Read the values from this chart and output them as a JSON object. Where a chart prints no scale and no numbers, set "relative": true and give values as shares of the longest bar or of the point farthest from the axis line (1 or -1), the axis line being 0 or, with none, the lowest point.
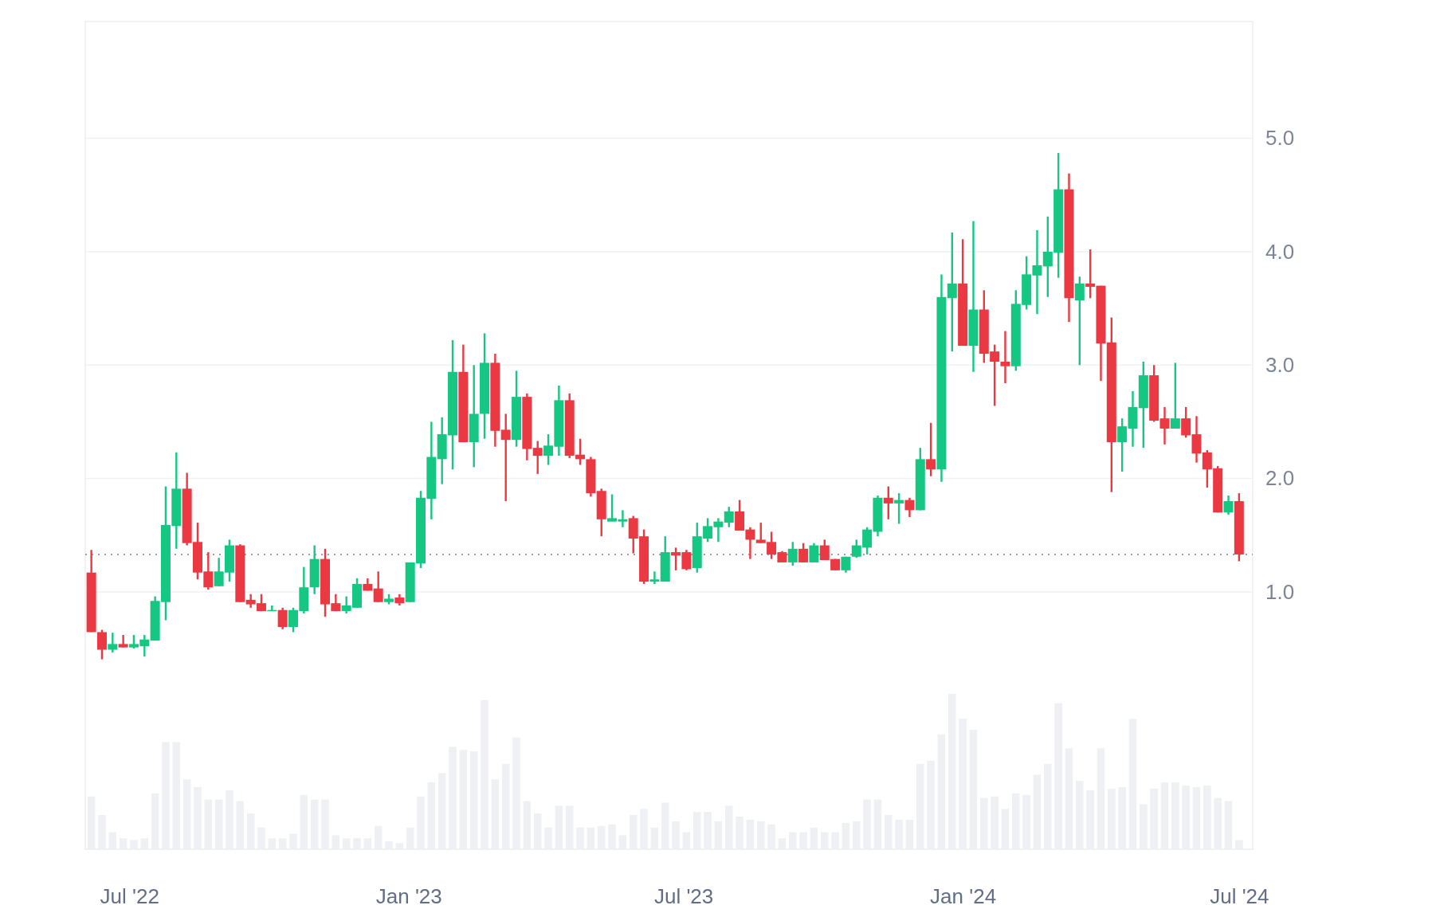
{
  "chart_data": [
    {
      "type": "candlestick",
      "x": [
        "2022-06-06",
        "2022-06-13",
        "2022-06-20",
        "2022-06-27",
        "2022-07-04",
        "2022-07-11",
        "2022-07-18",
        "2022-07-25",
        "2022-08-01",
        "2022-08-08",
        "2022-08-15",
        "2022-08-22",
        "2022-08-29",
        "2022-09-05",
        "2022-09-12",
        "2022-09-19",
        "2022-09-26",
        "2022-10-03",
        "2022-10-10",
        "2022-10-17",
        "2022-10-24",
        "2022-10-31",
        "2022-11-07",
        "2022-11-14",
        "2022-11-21",
        "2022-11-28",
        "2022-12-05",
        "2022-12-12",
        "2022-12-19",
        "2022-12-26",
        "2023-01-02",
        "2023-01-09",
        "2023-01-16",
        "2023-01-23",
        "2023-01-30",
        "2023-02-06",
        "2023-02-13",
        "2023-02-20",
        "2023-02-27",
        "2023-03-06",
        "2023-03-13",
        "2023-03-20",
        "2023-03-27",
        "2023-04-03",
        "2023-04-10",
        "2023-04-17",
        "2023-04-24",
        "2023-05-01",
        "2023-05-08",
        "2023-05-15",
        "2023-05-22",
        "2023-05-29",
        "2023-06-05",
        "2023-06-12",
        "2023-06-19",
        "2023-06-26",
        "2023-07-03",
        "2023-07-10",
        "2023-07-17",
        "2023-07-24",
        "2023-07-31",
        "2023-08-07",
        "2023-08-14",
        "2023-08-21",
        "2023-08-28",
        "2023-09-04",
        "2023-09-11",
        "2023-09-18",
        "2023-09-25",
        "2023-10-02",
        "2023-10-09",
        "2023-10-16",
        "2023-10-23",
        "2023-10-30",
        "2023-11-06",
        "2023-11-13",
        "2023-11-20",
        "2023-11-27",
        "2023-12-04",
        "2023-12-11",
        "2023-12-18",
        "2023-12-25",
        "2024-01-01",
        "2024-01-08",
        "2024-01-15",
        "2024-01-22",
        "2024-01-29",
        "2024-02-05",
        "2024-02-12",
        "2024-02-19",
        "2024-02-26",
        "2024-03-04",
        "2024-03-11",
        "2024-03-18",
        "2024-03-25",
        "2024-04-01",
        "2024-04-08",
        "2024-04-15",
        "2024-04-22",
        "2024-04-29",
        "2024-05-06",
        "2024-05-13",
        "2024-05-20",
        "2024-05-27",
        "2024-06-03",
        "2024-06-10",
        "2024-06-17",
        "2024-06-24",
        "2024-07-01"
      ],
      "ohlc": [
        [
          1.17,
          1.37,
          0.645,
          0.645
        ],
        [
          0.645,
          0.665,
          0.405,
          0.49
        ],
        [
          0.49,
          0.64,
          0.465,
          0.54
        ],
        [
          0.54,
          0.62,
          0.51,
          0.51
        ],
        [
          0.51,
          0.62,
          0.5,
          0.54
        ],
        [
          0.52,
          0.62,
          0.43,
          0.58
        ],
        [
          0.57,
          0.96,
          0.57,
          0.92
        ],
        [
          0.91,
          1.93,
          0.75,
          1.59
        ],
        [
          1.58,
          2.23,
          1.38,
          1.91
        ],
        [
          1.91,
          2.05,
          1.41,
          1.43
        ],
        [
          1.44,
          1.61,
          1.11,
          1.17
        ],
        [
          1.18,
          1.35,
          1.02,
          1.04
        ],
        [
          1.05,
          1.3,
          1.05,
          1.18
        ],
        [
          1.17,
          1.46,
          1.09,
          1.41
        ],
        [
          1.41,
          1.42,
          0.91,
          0.91
        ],
        [
          0.93,
          0.98,
          0.86,
          0.89
        ],
        [
          0.9,
          0.98,
          0.83,
          0.83
        ],
        [
          0.83,
          0.88,
          0.83,
          0.84
        ],
        [
          0.84,
          0.86,
          0.67,
          0.69
        ],
        [
          0.69,
          0.86,
          0.645,
          0.84
        ],
        [
          0.83,
          1.22,
          0.81,
          1.04
        ],
        [
          1.04,
          1.41,
          0.98,
          1.29
        ],
        [
          1.29,
          1.38,
          0.78,
          0.89
        ],
        [
          0.9,
          0.98,
          0.83,
          0.83
        ],
        [
          0.83,
          0.96,
          0.81,
          0.88
        ],
        [
          0.86,
          1.12,
          0.86,
          1.07
        ],
        [
          1.07,
          1.12,
          1.01,
          1.01
        ],
        [
          1.03,
          1.18,
          0.91,
          0.91
        ],
        [
          0.91,
          0.98,
          0.89,
          0.94
        ],
        [
          0.95,
          0.98,
          0.88,
          0.9
        ],
        [
          0.91,
          1.26,
          0.91,
          1.26
        ],
        [
          1.25,
          1.89,
          1.21,
          1.83
        ],
        [
          1.82,
          2.5,
          1.64,
          2.19
        ],
        [
          2.17,
          2.54,
          1.95,
          2.39
        ],
        [
          2.38,
          3.22,
          2.08,
          2.94
        ],
        [
          2.94,
          3.18,
          2.32,
          2.32
        ],
        [
          2.32,
          3.0,
          2.1,
          2.57
        ],
        [
          2.57,
          3.28,
          2.35,
          3.02
        ],
        [
          3.02,
          3.1,
          2.28,
          2.42
        ],
        [
          2.43,
          2.57,
          1.8,
          2.34
        ],
        [
          2.34,
          2.95,
          2.28,
          2.72
        ],
        [
          2.72,
          2.75,
          2.16,
          2.26
        ],
        [
          2.27,
          2.33,
          2.04,
          2.2
        ],
        [
          2.2,
          2.39,
          2.12,
          2.29
        ],
        [
          2.28,
          2.82,
          2.2,
          2.69
        ],
        [
          2.69,
          2.75,
          2.18,
          2.2
        ],
        [
          2.21,
          2.35,
          2.12,
          2.17
        ],
        [
          2.17,
          2.19,
          1.84,
          1.87
        ],
        [
          1.89,
          1.91,
          1.49,
          1.64
        ],
        [
          1.62,
          1.86,
          1.62,
          1.65
        ],
        [
          1.62,
          1.72,
          1.57,
          1.64
        ],
        [
          1.65,
          1.67,
          1.34,
          1.47
        ],
        [
          1.49,
          1.55,
          1.07,
          1.09
        ],
        [
          1.09,
          1.18,
          1.07,
          1.11
        ],
        [
          1.09,
          1.49,
          1.09,
          1.35
        ],
        [
          1.35,
          1.39,
          1.19,
          1.32
        ],
        [
          1.35,
          1.37,
          1.19,
          1.2
        ],
        [
          1.21,
          1.61,
          1.17,
          1.49
        ],
        [
          1.47,
          1.65,
          1.44,
          1.58
        ],
        [
          1.57,
          1.65,
          1.44,
          1.62
        ],
        [
          1.61,
          1.75,
          1.57,
          1.71
        ],
        [
          1.71,
          1.81,
          1.54,
          1.54
        ],
        [
          1.55,
          1.57,
          1.29,
          1.46
        ],
        [
          1.46,
          1.61,
          1.43,
          1.43
        ],
        [
          1.44,
          1.53,
          1.29,
          1.33
        ],
        [
          1.35,
          1.36,
          1.26,
          1.26
        ],
        [
          1.26,
          1.44,
          1.23,
          1.38
        ],
        [
          1.38,
          1.43,
          1.26,
          1.26
        ],
        [
          1.26,
          1.43,
          1.26,
          1.41
        ],
        [
          1.41,
          1.46,
          1.28,
          1.28
        ],
        [
          1.29,
          1.29,
          1.19,
          1.19
        ],
        [
          1.19,
          1.31,
          1.17,
          1.31
        ],
        [
          1.31,
          1.46,
          1.3,
          1.41
        ],
        [
          1.39,
          1.57,
          1.33,
          1.55
        ],
        [
          1.53,
          1.85,
          1.49,
          1.83
        ],
        [
          1.83,
          1.93,
          1.64,
          1.78
        ],
        [
          1.78,
          1.87,
          1.6,
          1.81
        ],
        [
          1.81,
          1.83,
          1.66,
          1.72
        ],
        [
          1.72,
          2.27,
          1.72,
          2.17
        ],
        [
          2.17,
          2.49,
          2.02,
          2.08
        ],
        [
          2.08,
          3.8,
          1.97,
          3.6
        ],
        [
          3.59,
          4.17,
          3.12,
          3.72
        ],
        [
          3.72,
          4.11,
          3.17,
          3.17
        ],
        [
          3.17,
          4.27,
          2.94,
          3.49
        ],
        [
          3.49,
          3.66,
          3.02,
          3.1
        ],
        [
          3.12,
          3.18,
          2.64,
          3.03
        ],
        [
          3.03,
          3.3,
          2.84,
          2.99
        ],
        [
          2.99,
          3.66,
          2.95,
          3.54
        ],
        [
          3.53,
          3.96,
          3.49,
          3.8
        ],
        [
          3.79,
          4.19,
          3.45,
          3.88
        ],
        [
          3.87,
          4.31,
          3.6,
          4.0
        ],
        [
          3.99,
          4.87,
          3.77,
          4.55
        ],
        [
          4.55,
          4.69,
          3.38,
          3.59
        ],
        [
          3.57,
          3.78,
          3.0,
          3.72
        ],
        [
          3.72,
          4.02,
          3.59,
          3.69
        ],
        [
          3.7,
          3.7,
          2.86,
          3.19
        ],
        [
          3.2,
          3.42,
          1.88,
          2.32
        ],
        [
          2.32,
          2.53,
          2.06,
          2.46
        ],
        [
          2.44,
          2.77,
          2.28,
          2.63
        ],
        [
          2.62,
          3.03,
          2.27,
          2.91
        ],
        [
          2.91,
          3.0,
          2.5,
          2.51
        ],
        [
          2.53,
          2.63,
          2.3,
          2.44
        ],
        [
          2.44,
          3.02,
          2.44,
          2.53
        ],
        [
          2.53,
          2.63,
          2.36,
          2.38
        ],
        [
          2.39,
          2.55,
          2.14,
          2.22
        ],
        [
          2.23,
          2.25,
          1.92,
          2.08
        ],
        [
          2.09,
          2.11,
          1.7,
          1.7
        ],
        [
          1.7,
          1.85,
          1.68,
          1.8
        ],
        [
          1.8,
          1.87,
          1.27,
          1.33
        ]
      ],
      "colors": [
        "#ea3943",
        "#ea3943",
        "#16c784",
        "#ea3943",
        "#16c784",
        "#16c784",
        "#16c784",
        "#16c784",
        "#16c784",
        "#ea3943",
        "#ea3943",
        "#ea3943",
        "#16c784",
        "#16c784",
        "#ea3943",
        "#ea3943",
        "#ea3943",
        "#16c784",
        "#ea3943",
        "#16c784",
        "#16c784",
        "#16c784",
        "#ea3943",
        "#ea3943",
        "#16c784",
        "#16c784",
        "#ea3943",
        "#ea3943",
        "#16c784",
        "#ea3943",
        "#16c784",
        "#16c784",
        "#16c784",
        "#16c784",
        "#16c784",
        "#ea3943",
        "#16c784",
        "#16c784",
        "#ea3943",
        "#ea3943",
        "#16c784",
        "#ea3943",
        "#ea3943",
        "#16c784",
        "#16c784",
        "#ea3943",
        "#ea3943",
        "#ea3943",
        "#ea3943",
        "#16c784",
        "#16c784",
        "#ea3943",
        "#ea3943",
        "#16c784",
        "#16c784",
        "#ea3943",
        "#ea3943",
        "#16c784",
        "#16c784",
        "#16c784",
        "#16c784",
        "#ea3943",
        "#ea3943",
        "#ea3943",
        "#ea3943",
        "#ea3943",
        "#16c784",
        "#ea3943",
        "#16c784",
        "#ea3943",
        "#ea3943",
        "#16c784",
        "#16c784",
        "#16c784",
        "#16c784",
        "#ea3943",
        "#16c784",
        "#ea3943",
        "#16c784",
        "#ea3943",
        "#16c784",
        "#16c784",
        "#ea3943",
        "#16c784",
        "#ea3943",
        "#ea3943",
        "#ea3943",
        "#16c784",
        "#16c784",
        "#16c784",
        "#16c784",
        "#16c784",
        "#ea3943",
        "#16c784",
        "#ea3943",
        "#ea3943",
        "#ea3943",
        "#16c784",
        "#16c784",
        "#16c784",
        "#ea3943",
        "#ea3943",
        "#16c784",
        "#ea3943",
        "#ea3943",
        "#ea3943",
        "#ea3943",
        "#16c784",
        "#ea3943"
      ],
      "xlim": [
        "2022-06-02",
        "2024-07-10"
      ],
      "ylim": [
        -1.27,
        6.03
      ],
      "yticks": [
        {
          "value": 1,
          "label": "1.0"
        },
        {
          "value": 2,
          "label": "2.0"
        },
        {
          "value": 3,
          "label": "3.0"
        },
        {
          "value": 4,
          "label": "4.0"
        },
        {
          "value": 5,
          "label": "5.0"
        }
      ],
      "grid": "y",
      "tick_labels": "y",
      "ref_lines": [
        {
          "axis": "y",
          "value": 1.33,
          "color": "#9aa0a8",
          "line_style": "dotted"
        }
      ]
    },
    {
      "type": "bar",
      "relative": true,
      "x": [
        "2022-06-06",
        "2022-06-13",
        "2022-06-20",
        "2022-06-27",
        "2022-07-04",
        "2022-07-11",
        "2022-07-18",
        "2022-07-25",
        "2022-08-01",
        "2022-08-08",
        "2022-08-15",
        "2022-08-22",
        "2022-08-29",
        "2022-09-05",
        "2022-09-12",
        "2022-09-19",
        "2022-09-26",
        "2022-10-03",
        "2022-10-10",
        "2022-10-17",
        "2022-10-24",
        "2022-10-31",
        "2022-11-07",
        "2022-11-14",
        "2022-11-21",
        "2022-11-28",
        "2022-12-05",
        "2022-12-12",
        "2022-12-19",
        "2022-12-26",
        "2023-01-02",
        "2023-01-09",
        "2023-01-16",
        "2023-01-23",
        "2023-01-30",
        "2023-02-06",
        "2023-02-13",
        "2023-02-20",
        "2023-02-27",
        "2023-03-06",
        "2023-03-13",
        "2023-03-20",
        "2023-03-27",
        "2023-04-03",
        "2023-04-10",
        "2023-04-17",
        "2023-04-24",
        "2023-05-01",
        "2023-05-08",
        "2023-05-15",
        "2023-05-22",
        "2023-05-29",
        "2023-06-05",
        "2023-06-12",
        "2023-06-19",
        "2023-06-26",
        "2023-07-03",
        "2023-07-10",
        "2023-07-17",
        "2023-07-24",
        "2023-07-31",
        "2023-08-07",
        "2023-08-14",
        "2023-08-21",
        "2023-08-28",
        "2023-09-04",
        "2023-09-11",
        "2023-09-18",
        "2023-09-25",
        "2023-10-02",
        "2023-10-09",
        "2023-10-16",
        "2023-10-23",
        "2023-10-30",
        "2023-11-06",
        "2023-11-13",
        "2023-11-20",
        "2023-11-27",
        "2023-12-04",
        "2023-12-11",
        "2023-12-18",
        "2023-12-25",
        "2024-01-01",
        "2024-01-08",
        "2024-01-15",
        "2024-01-22",
        "2024-01-29",
        "2024-02-05",
        "2024-02-12",
        "2024-02-19",
        "2024-02-26",
        "2024-03-04",
        "2024-03-11",
        "2024-03-18",
        "2024-03-25",
        "2024-04-01",
        "2024-04-08",
        "2024-04-15",
        "2024-04-22",
        "2024-04-29",
        "2024-05-06",
        "2024-05-13",
        "2024-05-20",
        "2024-05-27",
        "2024-06-03",
        "2024-06-10",
        "2024-06-17",
        "2024-06-24",
        "2024-07-01"
      ],
      "values": [
        0.34,
        0.22,
        0.11,
        0.07,
        0.06,
        0.07,
        0.36,
        0.69,
        0.69,
        0.45,
        0.4,
        0.32,
        0.32,
        0.38,
        0.31,
        0.23,
        0.14,
        0.07,
        0.07,
        0.1,
        0.35,
        0.32,
        0.32,
        0.09,
        0.07,
        0.07,
        0.07,
        0.15,
        0.05,
        0.04,
        0.14,
        0.34,
        0.43,
        0.49,
        0.66,
        0.64,
        0.63,
        0.96,
        0.45,
        0.55,
        0.72,
        0.31,
        0.23,
        0.14,
        0.28,
        0.28,
        0.14,
        0.14,
        0.15,
        0.16,
        0.09,
        0.22,
        0.26,
        0.14,
        0.3,
        0.18,
        0.11,
        0.24,
        0.24,
        0.18,
        0.28,
        0.21,
        0.19,
        0.18,
        0.16,
        0.07,
        0.11,
        0.11,
        0.14,
        0.11,
        0.11,
        0.17,
        0.18,
        0.32,
        0.32,
        0.22,
        0.19,
        0.19,
        0.55,
        0.57,
        0.74,
        1,
        0.84,
        0.77,
        0.33,
        0.34,
        0.26,
        0.36,
        0.35,
        0.48,
        0.55,
        0.94,
        0.65,
        0.44,
        0.38,
        0.65,
        0.39,
        0.4,
        0.84,
        0.29,
        0.39,
        0.43,
        0.43,
        0.41,
        0.4,
        0.41,
        0.33,
        0.31,
        0.06
      ],
      "color": "#eef0f3",
      "xlim": [
        "2022-06-02",
        "2024-07-10"
      ],
      "xticks": [
        {
          "value": "2022-07-01",
          "label": "Jul '22"
        },
        {
          "value": "2023-01-01",
          "label": "Jan '23"
        },
        {
          "value": "2023-07-01",
          "label": "Jul '23"
        },
        {
          "value": "2024-01-01",
          "label": "Jan '24"
        },
        {
          "value": "2024-07-01",
          "label": "Jul '24"
        }
      ],
      "tick_labels": "x"
    }
  ]
}
